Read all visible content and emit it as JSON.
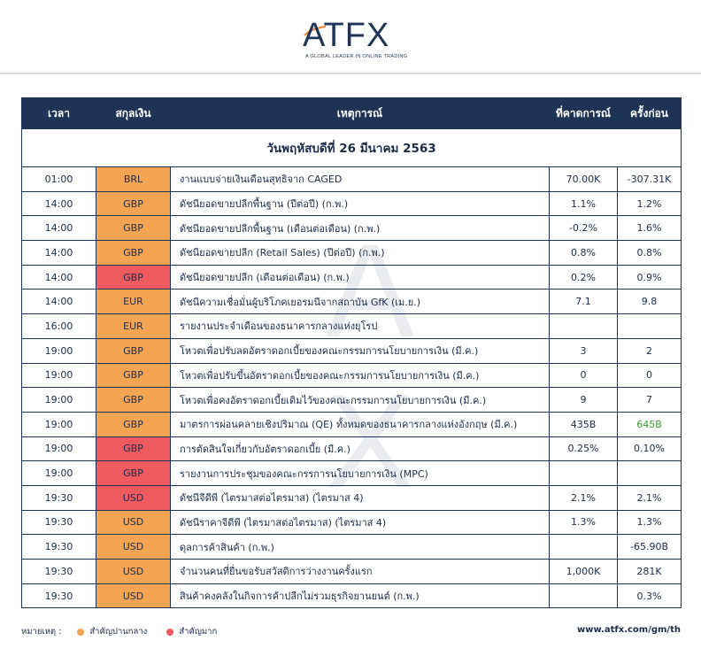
{
  "brand": {
    "name": "ATFX",
    "tagline": "A GLOBAL LEADER IN ONLINE TRADING"
  },
  "colors": {
    "navy": "#1e3456",
    "medium_importance": "#f5a452",
    "high_importance": "#ee5a5e",
    "positive": "#3a9a2f"
  },
  "table": {
    "headers": {
      "time": "เวลา",
      "currency": "สกุลเงิน",
      "event": "เหตุการณ์",
      "forecast": "ที่คาดการณ์",
      "previous": "ครั้งก่อน"
    },
    "date_label": "วันพฤหัสบดีที่ 26 มีนาคม 2563",
    "rows": [
      {
        "time": "01:00",
        "currency": "BRL",
        "importance": "medium",
        "event": "งานแบบจ่ายเงินเดือนสุทธิจาก CAGED",
        "forecast": "70.00K",
        "previous": "-307.31K"
      },
      {
        "time": "14:00",
        "currency": "GBP",
        "importance": "medium",
        "event": "ดัชนียอดขายปลีกพื้นฐาน (ปีต่อปี) (ก.พ.)",
        "forecast": "1.1%",
        "previous": "1.2%"
      },
      {
        "time": "14:00",
        "currency": "GBP",
        "importance": "medium",
        "event": "ดัชนียอดขายปลีกพื้นฐาน (เดือนต่อเดือน) (ก.พ.)",
        "forecast": "-0.2%",
        "previous": "1.6%"
      },
      {
        "time": "14:00",
        "currency": "GBP",
        "importance": "medium",
        "event": "ดัชนียอดขายปลีก (Retail Sales) (ปีต่อปี) (ก.พ.)",
        "forecast": "0.8%",
        "previous": "0.8%"
      },
      {
        "time": "14:00",
        "currency": "GBP",
        "importance": "high",
        "event": "ดัชนียอดขายปลีก (เดือนต่อเดือน) (ก.พ.)",
        "forecast": "0.2%",
        "previous": "0.9%"
      },
      {
        "time": "14:00",
        "currency": "EUR",
        "importance": "medium",
        "event": "ดัชนีความเชื่อมั่นผู้บริโภคเยอรมนีจากสถาบัน GfK (เม.ย.)",
        "forecast": "7.1",
        "previous": "9.8"
      },
      {
        "time": "16:00",
        "currency": "EUR",
        "importance": "medium",
        "event": "รายงานประจำเดือนของธนาคารกลางแห่งยุโรป",
        "forecast": "",
        "previous": ""
      },
      {
        "time": "19:00",
        "currency": "GBP",
        "importance": "medium",
        "event": "โหวตเพื่อปรับลดอัตราดอกเบี้ยของคณะกรรมการนโยบายการเงิน (มี.ค.)",
        "forecast": "3",
        "previous": "2"
      },
      {
        "time": "19:00",
        "currency": "GBP",
        "importance": "medium",
        "event": "โหวตเพื่อปรับขึ้นอัตราดอกเบี้ยของคณะกรรมการนโยบายการเงิน (มี.ค.)",
        "forecast": "0",
        "previous": "0"
      },
      {
        "time": "19:00",
        "currency": "GBP",
        "importance": "medium",
        "event": "โหวตเพื่อคงอัตราดอกเบี้ยเดิมไว้ของคณะกรรมการนโยบายการเงิน (มี.ค.)",
        "forecast": "9",
        "previous": "7"
      },
      {
        "time": "19:00",
        "currency": "GBP",
        "importance": "medium",
        "event": "มาตรการผ่อนคลายเชิงปริมาณ (QE) ทั้งหมดของธนาคารกลางแห่งอังกฤษ (มี.ค.)",
        "forecast": "435B",
        "previous": "645B",
        "previous_color": "#3a9a2f"
      },
      {
        "time": "19:00",
        "currency": "GBP",
        "importance": "high",
        "event": "การตัดสินใจเกี่ยวกับอัตราดอกเบี้ย (มี.ค.)",
        "forecast": "0.25%",
        "previous": "0.10%"
      },
      {
        "time": "19:00",
        "currency": "GBP",
        "importance": "high",
        "event": "รายงานการประชุมของคณะกรรการนโยบายการเงิน (MPC)",
        "forecast": "",
        "previous": ""
      },
      {
        "time": "19:30",
        "currency": "USD",
        "importance": "high",
        "event": "ดัชนีจีดีพี (ไตรมาสต่อไตรมาส) (ไตรมาส 4)",
        "forecast": "2.1%",
        "previous": "2.1%"
      },
      {
        "time": "19:30",
        "currency": "USD",
        "importance": "medium",
        "event": "ดัชนีราคาจีดีพี (ไตรมาสต่อไตรมาส) (ไตรมาส 4)",
        "forecast": "1.3%",
        "previous": "1.3%"
      },
      {
        "time": "19:30",
        "currency": "USD",
        "importance": "medium",
        "event": "ดุลการค้าสินค้า (ก.พ.)",
        "forecast": "",
        "previous": "-65.90B"
      },
      {
        "time": "19:30",
        "currency": "USD",
        "importance": "medium",
        "event": "จำนวนคนที่ยื่นขอรับสวัสดิการว่างงานครั้งแรก",
        "forecast": "1,000K",
        "previous": "281K"
      },
      {
        "time": "19:30",
        "currency": "USD",
        "importance": "medium",
        "event": "สินค้าคงคลังในกิจการค้าปลีกไม่รวมธุรกิจยานยนต์ (ก.พ.)",
        "forecast": "",
        "previous": "0.3%"
      }
    ]
  },
  "legend": {
    "label": "หมายเหตุ :",
    "medium": "สำคัญปานกลาง",
    "high": "สำคัญมาก"
  },
  "footer": {
    "website": "www.atfx.com/gm/th"
  }
}
